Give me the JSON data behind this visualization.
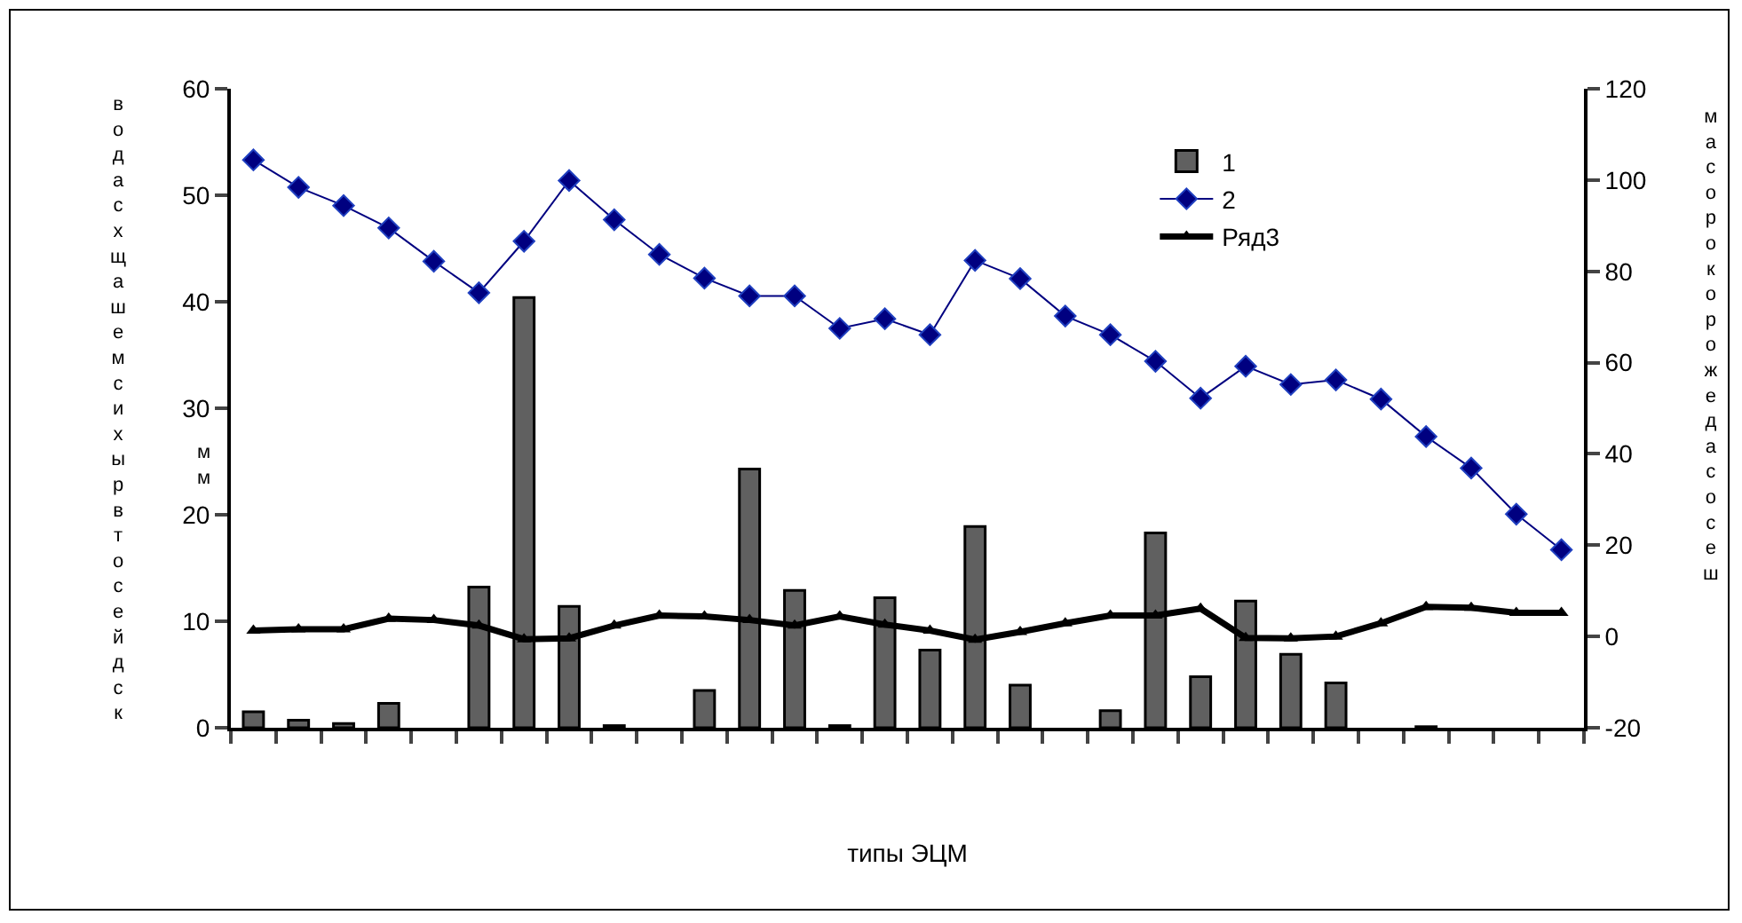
{
  "chart_data": {
    "type": "bar",
    "xlabel": "типы ЭЦМ",
    "ylabel": "водасхщашемсихырвтосейдск",
    "y2label": "масорокорожедасосеш",
    "annotations": [
      "мм"
    ],
    "categories": [
      null,
      null,
      null,
      null,
      null,
      null,
      null,
      null,
      null,
      null,
      null,
      null,
      null,
      null,
      null,
      null,
      null,
      null,
      null,
      null,
      null,
      null,
      null,
      null,
      null,
      null,
      null,
      null,
      null,
      null
    ],
    "series": [
      {
        "name": "1",
        "color": "#606060",
        "values": [
          1.5,
          0.7,
          0.4,
          2.3,
          0,
          13.2,
          40.4,
          11.4,
          0.2,
          0,
          3.5,
          24.3,
          12.9,
          0.2,
          12.2,
          7.3,
          18.9,
          4.0,
          0,
          1.6,
          18.3,
          4.8,
          11.9,
          6.9,
          4.2,
          0,
          0.1,
          0,
          0,
          0
        ]
      },
      {
        "name": "2",
        "type": "line",
        "axis": "y2",
        "color": "#000080",
        "marker": "diamond",
        "values": [
          104.4,
          98.4,
          94.4,
          89.5,
          82.2,
          75.3,
          86.6,
          99.9,
          91.3,
          83.7,
          78.5,
          74.6,
          74.6,
          67.5,
          69.6,
          66.1,
          82.4,
          78.4,
          70.2,
          66.1,
          60.3,
          52.2,
          59.2,
          55.2,
          56.2,
          52.0,
          43.8,
          36.9,
          26.8,
          19.0
        ]
      },
      {
        "name": "Ряд3",
        "type": "line",
        "axis": "y2",
        "color": "#000000",
        "marker": "triangle",
        "values": [
          1.3,
          1.6,
          1.6,
          3.9,
          3.6,
          2.4,
          -0.6,
          -0.4,
          2.4,
          4.6,
          4.4,
          3.6,
          2.4,
          4.4,
          2.6,
          1.3,
          -0.7,
          1.0,
          2.9,
          4.6,
          4.6,
          6.1,
          -0.3,
          -0.4,
          0,
          2.9,
          6.5,
          6.3,
          5.2,
          5.2
        ]
      }
    ],
    "ylim": [
      0,
      60
    ],
    "yticks": [
      0,
      10,
      20,
      30,
      40,
      50,
      60
    ],
    "y2lim": [
      -20,
      120
    ],
    "y2ticks": [
      -20,
      0,
      20,
      40,
      60,
      80,
      100,
      120
    ],
    "legend": "top right",
    "grid": false
  }
}
